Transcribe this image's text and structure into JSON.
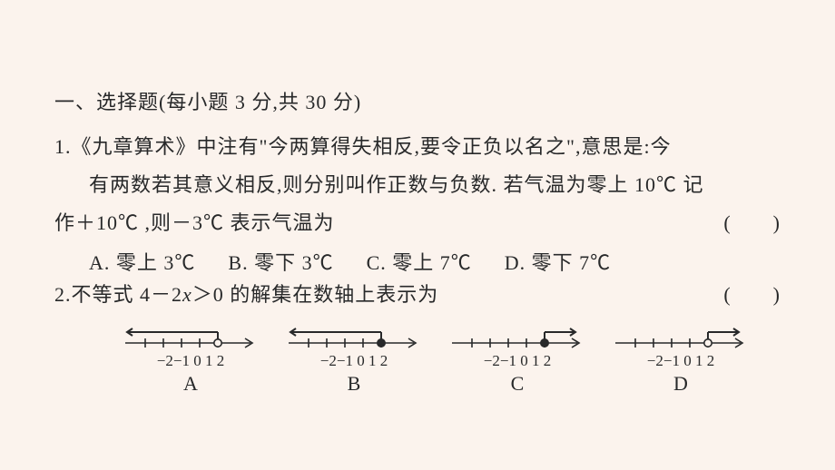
{
  "colors": {
    "bg": "#fbf3ed",
    "text": "#28292a",
    "stroke": "#28292a"
  },
  "section": {
    "heading": "一、选择题(每小题 3 分,共 30 分)"
  },
  "q1": {
    "number": "1.",
    "line1": "《九章算术》中注有\"今两算得失相反,要令正负以名之\",意思是:今",
    "line2": "有两数若其意义相反,则分别叫作正数与负数. 若气温为零上 10℃ 记",
    "line3_left": "作＋10℃ ,则－3℃ 表示气温为",
    "bracket": "(　　)",
    "options": {
      "A": "A. 零上 3℃",
      "B": "B. 零下 3℃",
      "C": "C. 零上 7℃",
      "D": "D. 零下 7℃"
    }
  },
  "q2": {
    "number": "2.",
    "stem_prefix": "不等式 4－2",
    "stem_var": "x",
    "stem_suffix": "＞0 的解集在数轴上表示为",
    "bracket": "(　　)",
    "number_line": {
      "ticks": [
        -2,
        -1,
        0,
        1,
        2
      ],
      "tick_labels": "−2−1 0  1  2",
      "stroke_width": 1.6,
      "arrow": true
    },
    "options": [
      {
        "letter": "A",
        "endpoint_open": true,
        "direction": "left",
        "boundary_tick_index": 4
      },
      {
        "letter": "B",
        "endpoint_open": false,
        "direction": "left",
        "boundary_tick_index": 4
      },
      {
        "letter": "C",
        "endpoint_open": false,
        "direction": "right",
        "boundary_tick_index": 4
      },
      {
        "letter": "D",
        "endpoint_open": true,
        "direction": "right",
        "boundary_tick_index": 4
      }
    ]
  }
}
